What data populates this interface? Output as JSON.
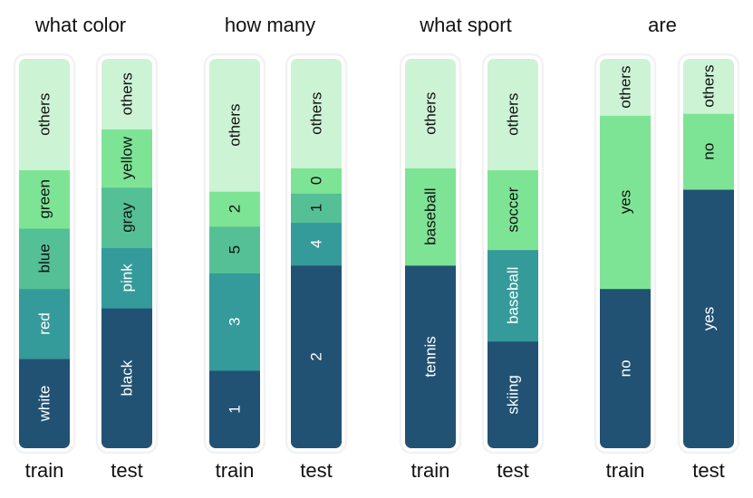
{
  "chart_data": {
    "type": "bar",
    "stacked": true,
    "orientation": "vertical",
    "grid": false,
    "legend": "none",
    "value_unit": "percent of answers",
    "colors": {
      "rank_1": "#215273",
      "rank_2": "#359a9a",
      "rank_3": "#55c096",
      "rank_4": "#7ee495",
      "rank_5": "#7ee495",
      "others": "#cdf3d5",
      "light_text": "#ffffff",
      "dark_text": "#111111",
      "frame": "#f2f2f2"
    },
    "groups": [
      {
        "title": "what color",
        "bars": [
          {
            "split": "train",
            "segments": [
              {
                "label": "white",
                "value": 23,
                "shade": "rank_1"
              },
              {
                "label": "red",
                "value": 18,
                "shade": "rank_2"
              },
              {
                "label": "blue",
                "value": 15.5,
                "shade": "rank_3"
              },
              {
                "label": "green",
                "value": 15,
                "shade": "rank_4"
              },
              {
                "label": "others",
                "value": 28.5,
                "shade": "others"
              }
            ]
          },
          {
            "split": "test",
            "segments": [
              {
                "label": "black",
                "value": 36,
                "shade": "rank_1"
              },
              {
                "label": "pink",
                "value": 15.5,
                "shade": "rank_2"
              },
              {
                "label": "gray",
                "value": 15.5,
                "shade": "rank_3"
              },
              {
                "label": "yellow",
                "value": 15,
                "shade": "rank_4"
              },
              {
                "label": "others",
                "value": 18,
                "shade": "others"
              }
            ]
          }
        ]
      },
      {
        "title": "how many",
        "bars": [
          {
            "split": "train",
            "segments": [
              {
                "label": "1",
                "value": 20,
                "shade": "rank_1"
              },
              {
                "label": "3",
                "value": 25,
                "shade": "rank_2"
              },
              {
                "label": "5",
                "value": 12,
                "shade": "rank_3"
              },
              {
                "label": "2",
                "value": 9,
                "shade": "rank_4"
              },
              {
                "label": "others",
                "value": 34,
                "shade": "others"
              }
            ]
          },
          {
            "split": "test",
            "segments": [
              {
                "label": "2",
                "value": 47,
                "shade": "rank_1"
              },
              {
                "label": "4",
                "value": 11,
                "shade": "rank_2"
              },
              {
                "label": "1",
                "value": 7.5,
                "shade": "rank_3"
              },
              {
                "label": "0",
                "value": 6.5,
                "shade": "rank_4"
              },
              {
                "label": "others",
                "value": 28,
                "shade": "others"
              }
            ]
          }
        ]
      },
      {
        "title": "what sport",
        "bars": [
          {
            "split": "train",
            "segments": [
              {
                "label": "tennis",
                "value": 47,
                "shade": "rank_1"
              },
              {
                "label": "baseball",
                "value": 25,
                "shade": "rank_4"
              },
              {
                "label": "others",
                "value": 28,
                "shade": "others"
              }
            ]
          },
          {
            "split": "test",
            "segments": [
              {
                "label": "skiing",
                "value": 27.5,
                "shade": "rank_1"
              },
              {
                "label": "baseball",
                "value": 23.5,
                "shade": "rank_2"
              },
              {
                "label": "soccer",
                "value": 20.5,
                "shade": "rank_4"
              },
              {
                "label": "others",
                "value": 28.5,
                "shade": "others"
              }
            ]
          }
        ]
      },
      {
        "title": "are",
        "bars": [
          {
            "split": "train",
            "segments": [
              {
                "label": "no",
                "value": 41,
                "shade": "rank_1"
              },
              {
                "label": "yes",
                "value": 44.5,
                "shade": "rank_4"
              },
              {
                "label": "others",
                "value": 14.5,
                "shade": "others"
              }
            ]
          },
          {
            "split": "test",
            "segments": [
              {
                "label": "yes",
                "value": 66.5,
                "shade": "rank_1"
              },
              {
                "label": "no",
                "value": 19.5,
                "shade": "rank_4"
              },
              {
                "label": "others",
                "value": 14,
                "shade": "others"
              }
            ]
          }
        ]
      }
    ]
  }
}
